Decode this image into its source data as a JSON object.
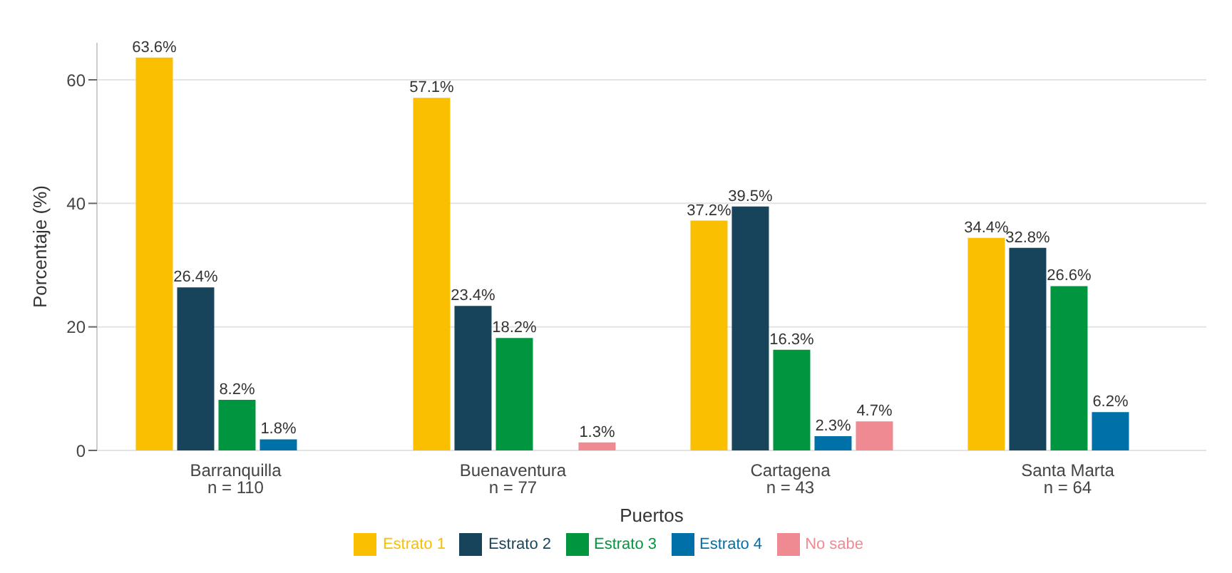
{
  "chart_data": {
    "type": "bar",
    "xlabel": "Puertos",
    "ylabel": "Porcentaje (%)",
    "categories": [
      "Barranquilla\nn = 110",
      "Buenaventura\nn = 77",
      "Cartagena\nn = 43",
      "Santa Marta\nn = 64"
    ],
    "series": [
      {
        "name": "Estrato 1",
        "color": "#f9bf00",
        "values": [
          63.6,
          57.1,
          37.2,
          34.4
        ],
        "value_labels": [
          "63.6%",
          "57.1%",
          "37.2%",
          "34.4%"
        ]
      },
      {
        "name": "Estrato 2",
        "color": "#17435b",
        "values": [
          26.4,
          23.4,
          39.5,
          32.8
        ],
        "value_labels": [
          "26.4%",
          "23.4%",
          "39.5%",
          "32.8%"
        ]
      },
      {
        "name": "Estrato 3",
        "color": "#00963f",
        "values": [
          8.2,
          18.2,
          16.3,
          26.6
        ],
        "value_labels": [
          "8.2%",
          "18.2%",
          "16.3%",
          "26.6%"
        ]
      },
      {
        "name": "Estrato 4",
        "color": "#0070a8",
        "values": [
          1.8,
          null,
          2.3,
          6.2
        ],
        "value_labels": [
          "1.8%",
          null,
          "2.3%",
          "6.2%"
        ]
      },
      {
        "name": "No sabe",
        "color": "#f08a92",
        "values": [
          null,
          1.3,
          4.7,
          null
        ],
        "value_labels": [
          null,
          "1.3%",
          "4.7%",
          null
        ]
      }
    ],
    "ylim": [
      0,
      66
    ],
    "yticks": [
      0,
      20,
      40,
      60
    ],
    "grid": "y",
    "legend": "bottom"
  }
}
